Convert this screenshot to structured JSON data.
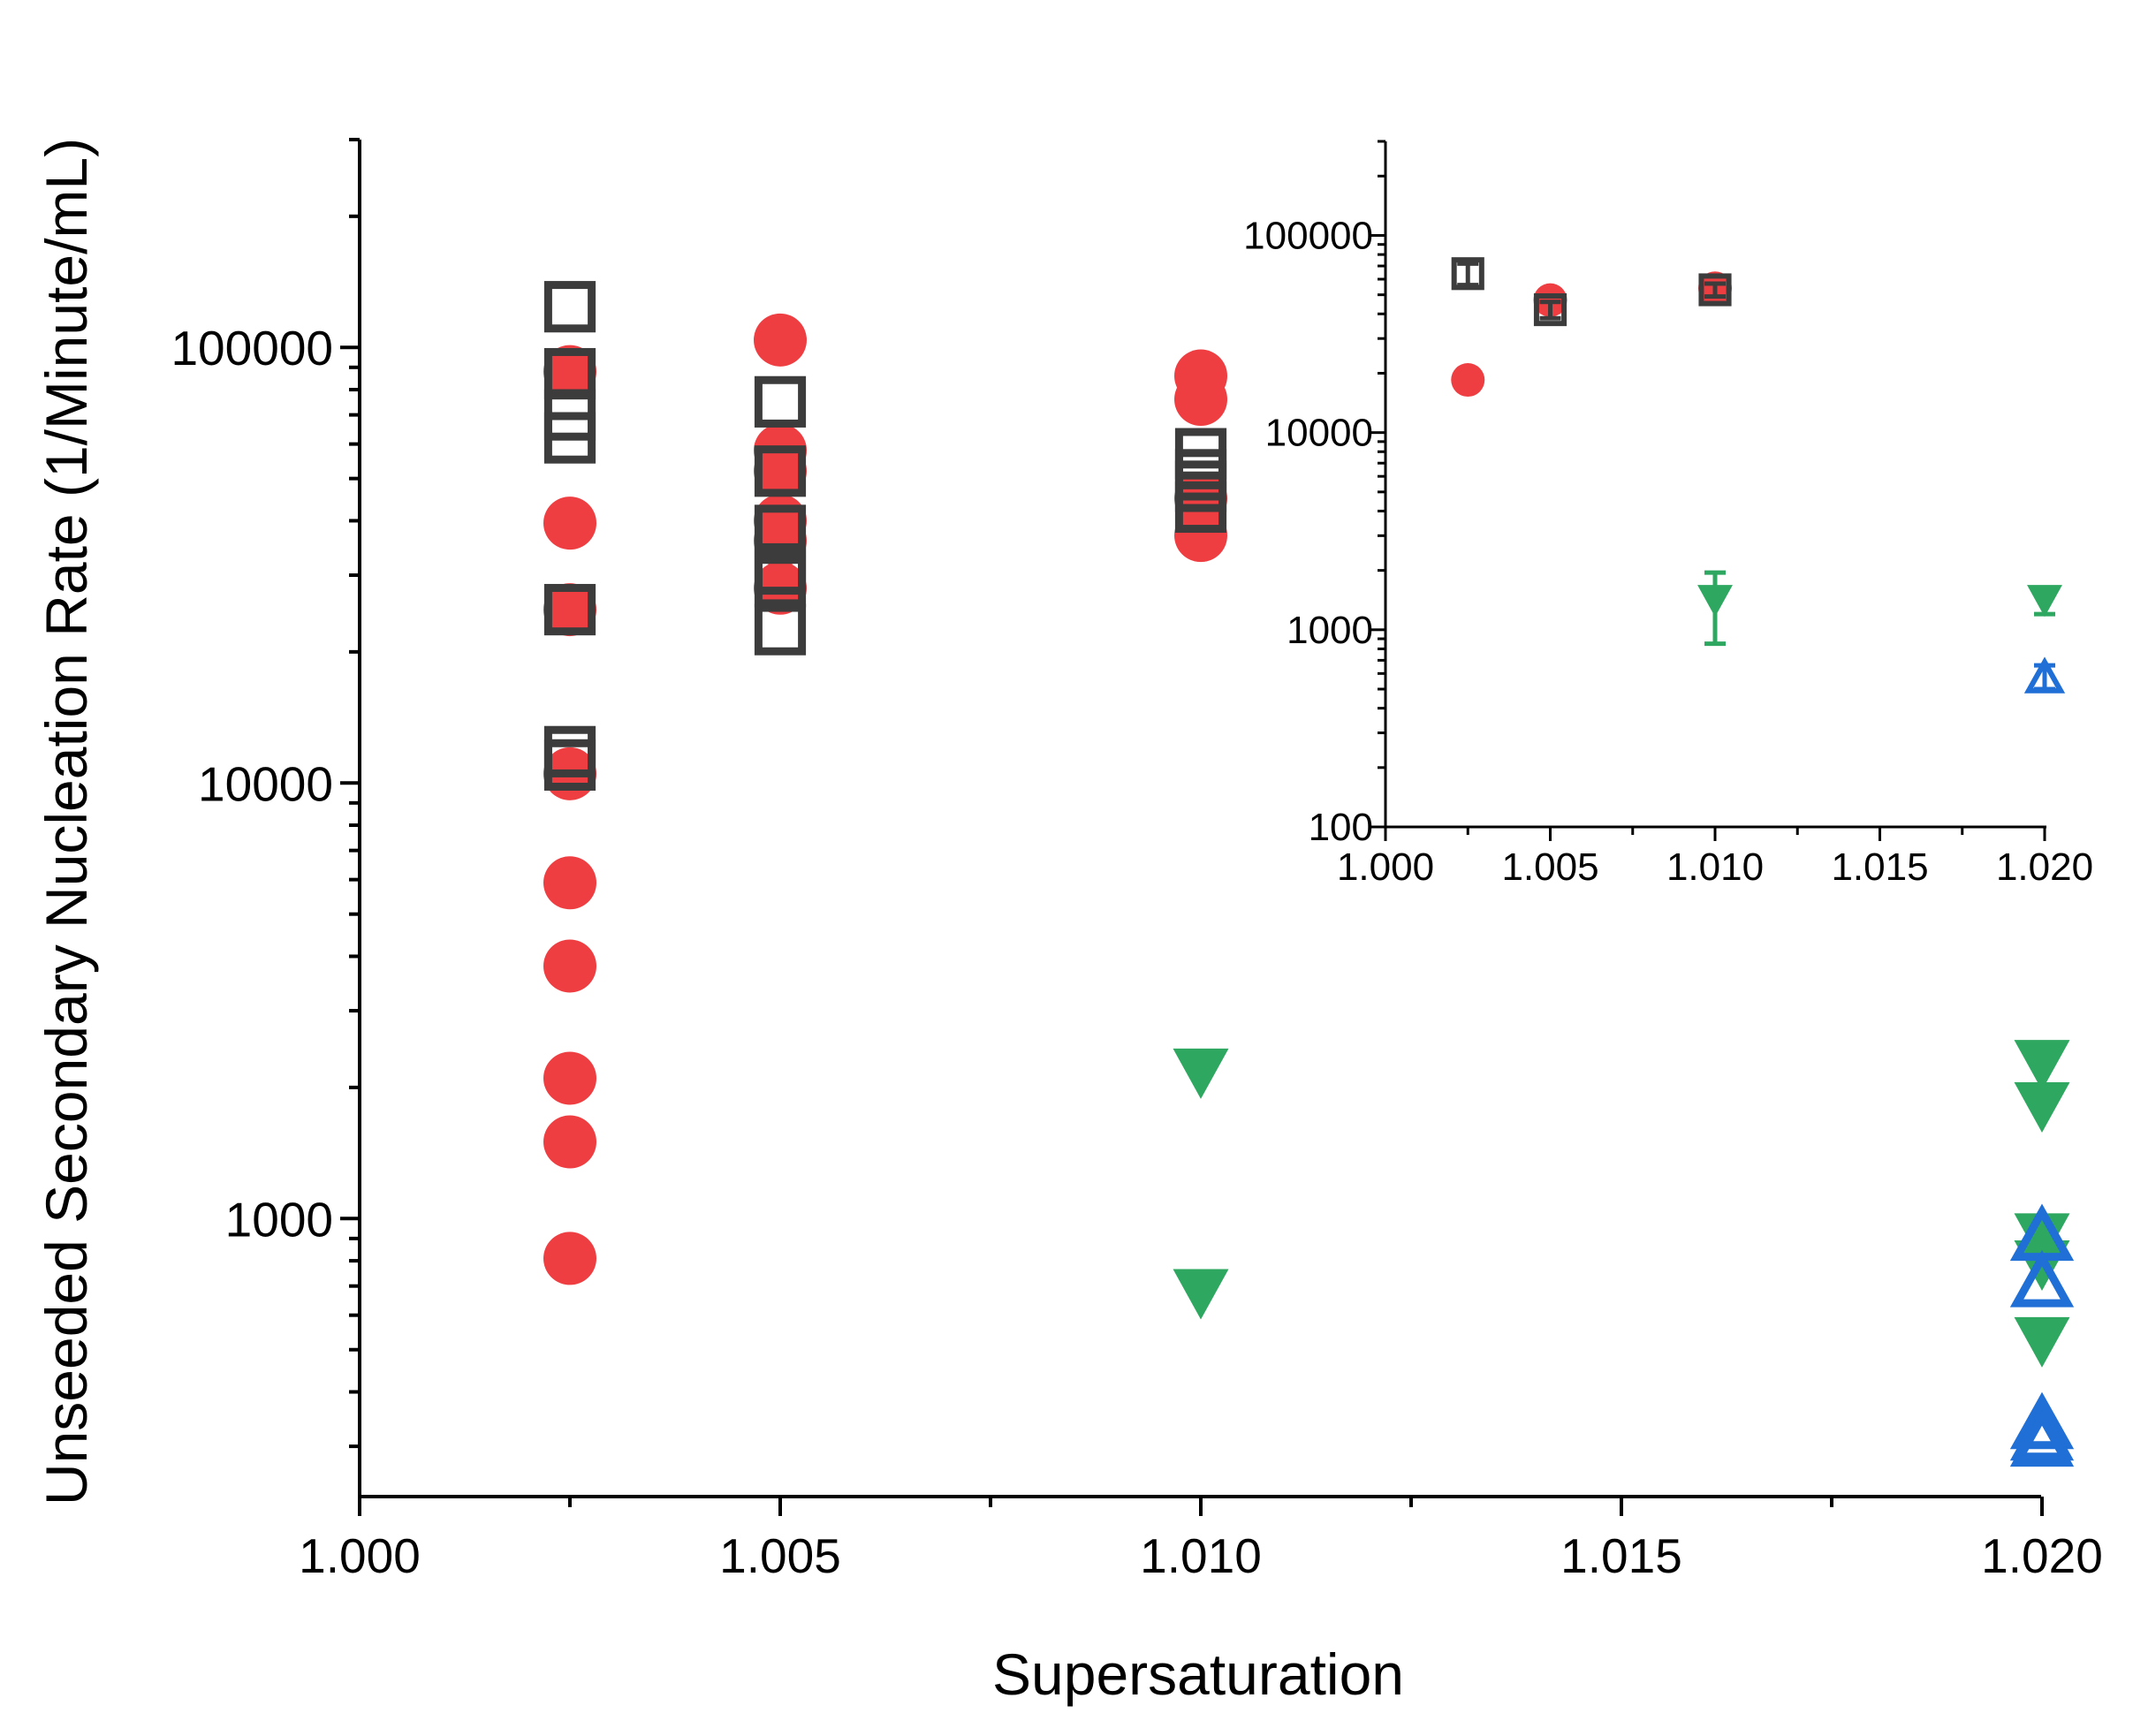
{
  "colors": {
    "red_circle": "#ef3e42",
    "gray_square": "#3c3c3c",
    "green_triangle": "#2ea860",
    "blue_triangle": "#1f6fd6",
    "axis": "#000000"
  },
  "chart_data": [
    {
      "type": "scatter",
      "title": "",
      "xlabel": "Supersaturation",
      "ylabel": "Unseeded Secondary Nucleation Rate (1/Minute/mL)",
      "xscale": "linear",
      "yscale": "log",
      "xlim": [
        1.0,
        1.02
      ],
      "ylim": [
        230,
        300000
      ],
      "x_ticks": [
        "1.000",
        "1.005",
        "1.010",
        "1.015",
        "1.020"
      ],
      "y_ticks": [
        "1000",
        "10000",
        "100000"
      ],
      "series": [
        {
          "name": "red circles",
          "marker": "circle",
          "x": [
            1.0025,
            1.0025,
            1.0025,
            1.0025,
            1.0025,
            1.0025,
            1.0025,
            1.0025,
            1.0025,
            1.005,
            1.005,
            1.005,
            1.005,
            1.005,
            1.005,
            1.01,
            1.01,
            1.01,
            1.01
          ],
          "y": [
            88000,
            39500,
            25000,
            10500,
            5900,
            3800,
            2100,
            1500,
            810,
            104000,
            58000,
            52000,
            40000,
            28000,
            36000,
            86000,
            76000,
            45000,
            37000
          ]
        },
        {
          "name": "gray squares",
          "marker": "square-open",
          "x": [
            1.0025,
            1.0025,
            1.0025,
            1.0025,
            1.0025,
            1.0025,
            1.0025,
            1.005,
            1.005,
            1.005,
            1.005,
            1.005,
            1.005,
            1.01,
            1.01,
            1.01,
            1.01
          ],
          "y": [
            124000,
            87000,
            70000,
            62000,
            25000,
            11800,
            11000,
            75000,
            52000,
            38000,
            31000,
            29000,
            22500,
            57000,
            51000,
            48000,
            43000
          ]
        },
        {
          "name": "green triangles",
          "marker": "triangle-down-filled",
          "x": [
            1.01,
            1.01,
            1.02,
            1.02,
            1.02,
            1.02,
            1.02
          ],
          "y": [
            2150,
            670,
            2250,
            1800,
            900,
            780,
            520
          ]
        },
        {
          "name": "blue triangles",
          "marker": "triangle-up-open",
          "x": [
            1.02,
            1.02,
            1.02,
            1.02,
            1.02
          ],
          "y": [
            920,
            720,
            340,
            320,
            310
          ]
        }
      ]
    },
    {
      "type": "scatter",
      "title": "inset",
      "xlabel": "",
      "ylabel": "",
      "xscale": "linear",
      "yscale": "log",
      "xlim": [
        1.0,
        1.02
      ],
      "ylim": [
        100,
        300000
      ],
      "x_ticks": [
        "1.000",
        "1.005",
        "1.010",
        "1.015",
        "1.020"
      ],
      "y_ticks": [
        "100",
        "1000",
        "10000",
        "100000"
      ],
      "series": [
        {
          "name": "red circles (mean)",
          "marker": "circle",
          "x": [
            1.0025,
            1.005,
            1.01
          ],
          "y": [
            18500,
            47000,
            54000
          ],
          "err": [
            0,
            6000,
            6000
          ]
        },
        {
          "name": "gray squares (mean)",
          "marker": "square-open",
          "x": [
            1.0025,
            1.005,
            1.01
          ],
          "y": [
            64000,
            42000,
            53000
          ],
          "err": [
            8000,
            4000,
            4000
          ]
        },
        {
          "name": "green triangles (mean)",
          "marker": "triangle-down-filled",
          "x": [
            1.01,
            1.02
          ],
          "y": [
            1400,
            1400
          ],
          "err": [
            550,
            200
          ]
        },
        {
          "name": "blue triangles (mean)",
          "marker": "triangle-up-open",
          "x": [
            1.02
          ],
          "y": [
            580
          ],
          "err": [
            80
          ]
        }
      ]
    }
  ]
}
